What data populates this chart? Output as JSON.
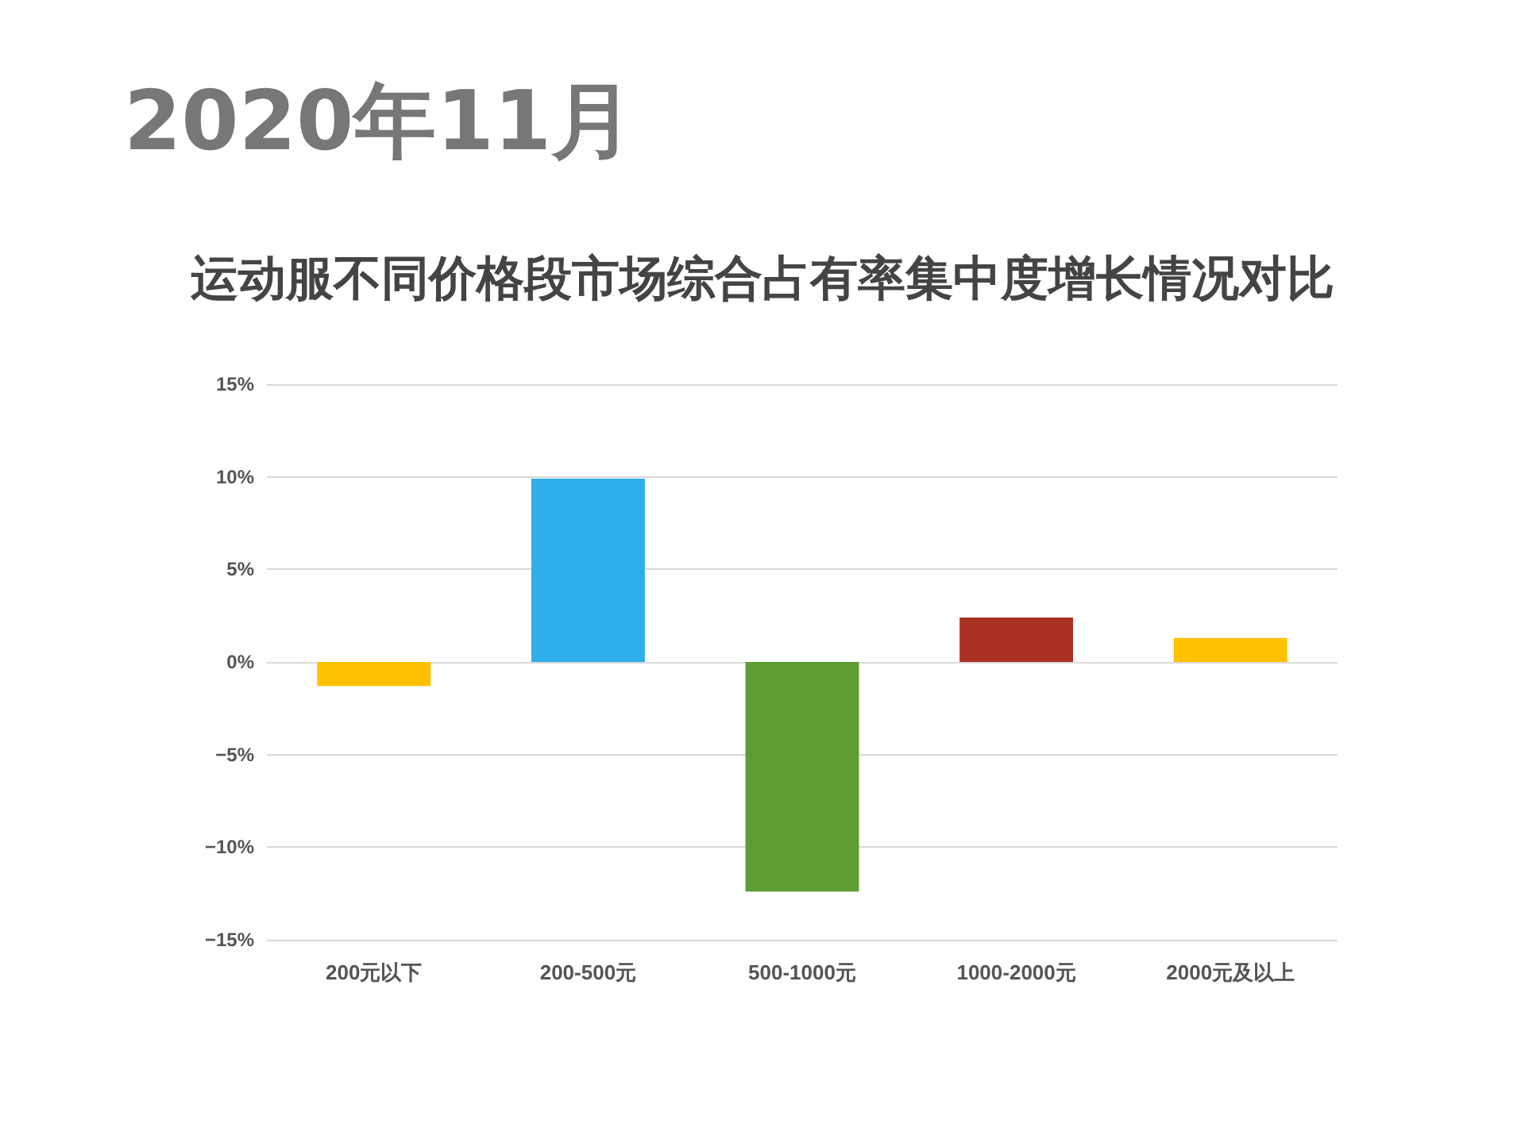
{
  "chart_data": {
    "type": "bar",
    "title": "2020年11月",
    "subtitle": "运动服不同价格段市场综合占有率集中度增长情况对比",
    "categories": [
      "200元以下",
      "200-500元",
      "500-1000元",
      "1000-2000元",
      "2000元及以上"
    ],
    "values": [
      -1.3,
      9.9,
      -12.4,
      2.4,
      1.3
    ],
    "colors": [
      "#ffc000",
      "#2eaeeb",
      "#5e9c34",
      "#ab3125",
      "#ffc000"
    ],
    "ylim": [
      -15,
      15
    ],
    "yticks": [
      {
        "value": -15,
        "label": "−15%"
      },
      {
        "value": -10,
        "label": "−10%"
      },
      {
        "value": -5,
        "label": "−5%"
      },
      {
        "value": 0,
        "label": "0%"
      },
      {
        "value": 5,
        "label": "5%"
      },
      {
        "value": 10,
        "label": "10%"
      },
      {
        "value": 15,
        "label": "15%"
      }
    ],
    "grid": true
  }
}
